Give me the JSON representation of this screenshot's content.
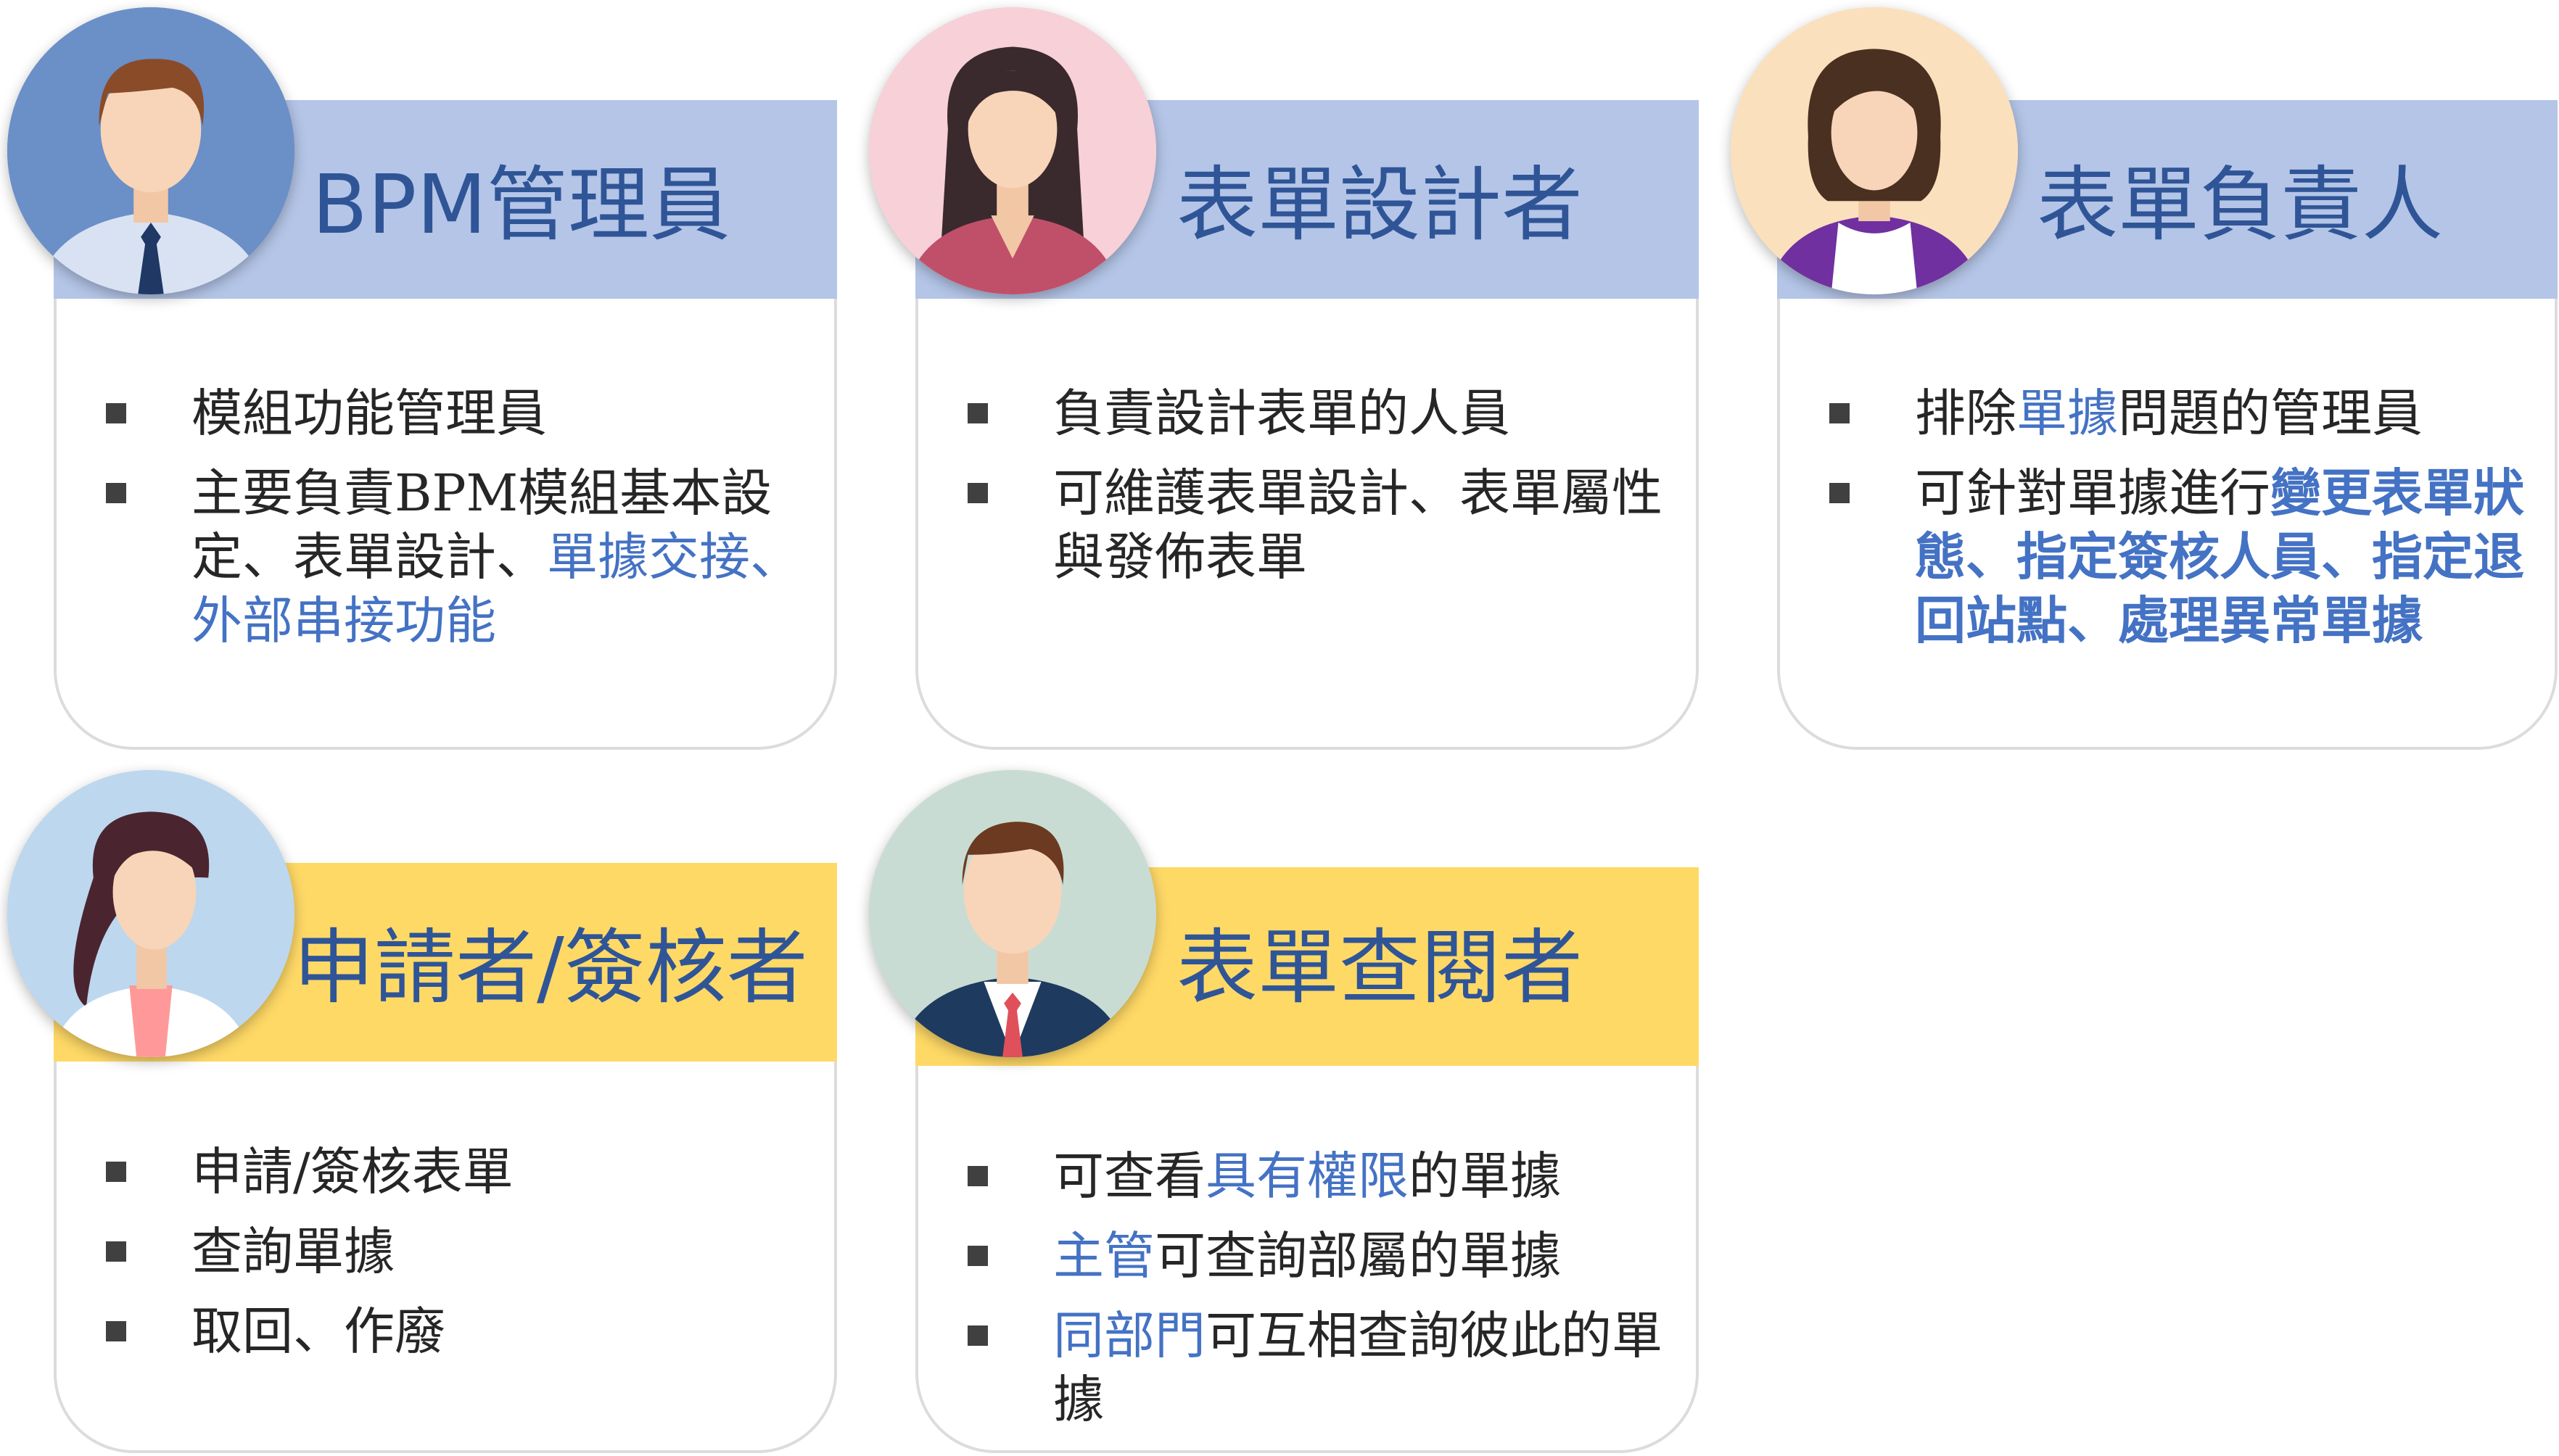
{
  "roles": [
    {
      "title": "BPM管理員",
      "items": [
        [
          {
            "t": "模組功能管理員"
          }
        ],
        [
          {
            "t": "主要負責BPM模組基本設定、表單設計、"
          },
          {
            "t": "單據交接、外部串接功能",
            "hl": true
          }
        ]
      ]
    },
    {
      "title": "表單設計者",
      "items": [
        [
          {
            "t": "負責設計表單的人員"
          }
        ],
        [
          {
            "t": "可維護表單設計、表單屬性與發佈表單"
          }
        ]
      ]
    },
    {
      "title": "表單負責人",
      "items": [
        [
          {
            "t": "排除"
          },
          {
            "t": "單據",
            "hl": true
          },
          {
            "t": "問題的管理員"
          }
        ],
        [
          {
            "t": "可針對單據進行"
          },
          {
            "t": "變更表單狀態、指定簽核人員、指定退回站點、處理異常單據",
            "hl": true,
            "bold": true
          }
        ]
      ]
    },
    {
      "title": "申請者/簽核者",
      "items": [
        [
          {
            "t": "申請/簽核表單"
          }
        ],
        [
          {
            "t": "查詢單據"
          }
        ],
        [
          {
            "t": "取回、作廢"
          }
        ]
      ]
    },
    {
      "title": "表單查閱者",
      "items": [
        [
          {
            "t": "可查看"
          },
          {
            "t": "具有權限",
            "hl": true
          },
          {
            "t": "的單據"
          }
        ],
        [
          {
            "t": "主管",
            "hl": true
          },
          {
            "t": "可查詢部屬的單據"
          }
        ],
        [
          {
            "t": "同部門",
            "hl": true
          },
          {
            "t": "可互相查詢彼此的單據"
          }
        ]
      ]
    }
  ],
  "colors": {
    "blue_band": "#b4c5e7",
    "yellow_band": "#ffd966",
    "title_text": "#2f5597",
    "highlight_text": "#4472c4",
    "body_text": "#262626"
  },
  "icons": [
    "man-avatar-icon",
    "woman-long-hair-avatar-icon",
    "woman-short-hair-avatar-icon",
    "woman-ponytail-avatar-icon",
    "man-suit-avatar-icon"
  ]
}
